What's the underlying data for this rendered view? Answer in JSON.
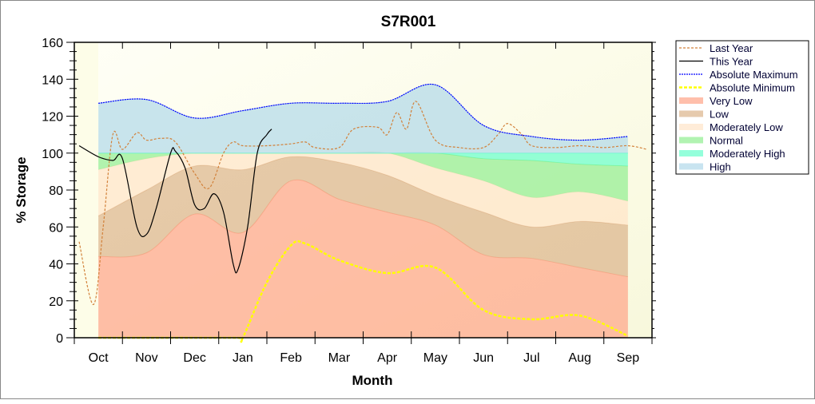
{
  "chart_data": {
    "type": "area",
    "title": "S7R001",
    "xlabel": "Month",
    "ylabel": "% Storage",
    "ylim": [
      0,
      160
    ],
    "yticks": [
      0,
      20,
      40,
      60,
      80,
      100,
      120,
      140,
      160
    ],
    "categories": [
      "Oct",
      "Nov",
      "Dec",
      "Jan",
      "Feb",
      "Mar",
      "Apr",
      "May",
      "Jun",
      "Jul",
      "Aug",
      "Sep"
    ],
    "bands": [
      {
        "name": "Very Low",
        "color": "#ffa488",
        "top": [
          44,
          46,
          67,
          57,
          85,
          75,
          68,
          61,
          45,
          43,
          38,
          33
        ]
      },
      {
        "name": "Low",
        "color": "#dcb48a",
        "top": [
          66,
          80,
          93,
          91,
          98,
          95,
          88,
          77,
          68,
          60,
          63,
          61
        ]
      },
      {
        "name": "Moderately Low",
        "color": "#ffe4c8",
        "top": [
          91,
          97,
          100,
          100,
          100,
          100,
          100,
          92,
          85,
          76,
          79,
          74
        ]
      },
      {
        "name": "Normal",
        "color": "#90ee90",
        "top": [
          100,
          100,
          100,
          100,
          100,
          100,
          100,
          100,
          97,
          96,
          94,
          93
        ]
      },
      {
        "name": "Moderately High",
        "color": "#66ffcc",
        "top": [
          100,
          100,
          100,
          100,
          100,
          100,
          100,
          100,
          100,
          100,
          100,
          100
        ]
      },
      {
        "name": "High",
        "color": "#b0d8ea",
        "top": [
          127,
          129,
          119,
          123,
          127,
          127,
          128,
          137,
          115,
          109,
          107,
          109
        ]
      }
    ],
    "lines": [
      {
        "name": "Last Year",
        "color": "#d2813a",
        "dash": "3,2",
        "x": [
          -0.4,
          -0.1,
          0.1,
          0.3,
          0.5,
          0.8,
          1.0,
          1.3,
          1.6,
          2.0,
          2.3,
          2.6,
          2.8,
          3.0,
          3.5,
          4.0,
          4.3,
          4.5,
          5.0,
          5.3,
          5.8,
          6.0,
          6.2,
          6.4,
          6.6,
          7.0,
          7.5,
          8.0,
          8.3,
          8.5,
          8.8,
          9.0,
          9.5,
          10.0,
          10.5,
          11.0,
          11.4
        ],
        "y": [
          52,
          18,
          60,
          110,
          102,
          111,
          107,
          108,
          106,
          89,
          81,
          100,
          106,
          104,
          104,
          105,
          106,
          103,
          103,
          113,
          114,
          110,
          122,
          113,
          128,
          107,
          103,
          103,
          110,
          116,
          110,
          104,
          103,
          104,
          103,
          104,
          102
        ]
      },
      {
        "name": "This Year",
        "color": "#000000",
        "dash": "",
        "x": [
          -0.4,
          0,
          0.3,
          0.5,
          0.8,
          1.0,
          1.2,
          1.5,
          1.6,
          1.8,
          2.0,
          2.2,
          2.4,
          2.6,
          2.8,
          2.9,
          3.1,
          3.3,
          3.5,
          3.6
        ],
        "y": [
          104,
          98,
          96,
          97,
          60,
          56,
          70,
          100,
          101,
          92,
          72,
          70,
          78,
          68,
          40,
          37,
          60,
          100,
          110,
          113
        ]
      },
      {
        "name": "Absolute Maximum",
        "color": "#0000ff",
        "dash": "2,1",
        "x": [
          0,
          1,
          2,
          3,
          4,
          5,
          6,
          7,
          8,
          9,
          10,
          11
        ],
        "y": [
          127,
          129,
          119,
          123,
          127,
          127,
          128,
          137,
          115,
          109,
          107,
          109
        ]
      },
      {
        "name": "Absolute Minimum",
        "color": "#ffff00",
        "dash": "4,2",
        "x": [
          0,
          1,
          2,
          2.9,
          3.0,
          3.5,
          4.0,
          4.3,
          5,
          6,
          7,
          8,
          9,
          10,
          11
        ],
        "y": [
          0,
          0,
          0,
          0,
          0,
          30,
          50,
          51,
          42,
          35,
          38,
          15,
          10,
          12,
          1
        ]
      }
    ],
    "legend": [
      "Last Year",
      "This Year",
      "Absolute Maximum",
      "Absolute Minimum",
      "Very Low",
      "Low",
      "Moderately Low",
      "Normal",
      "Moderately High",
      "High"
    ],
    "legend_position": "right"
  }
}
